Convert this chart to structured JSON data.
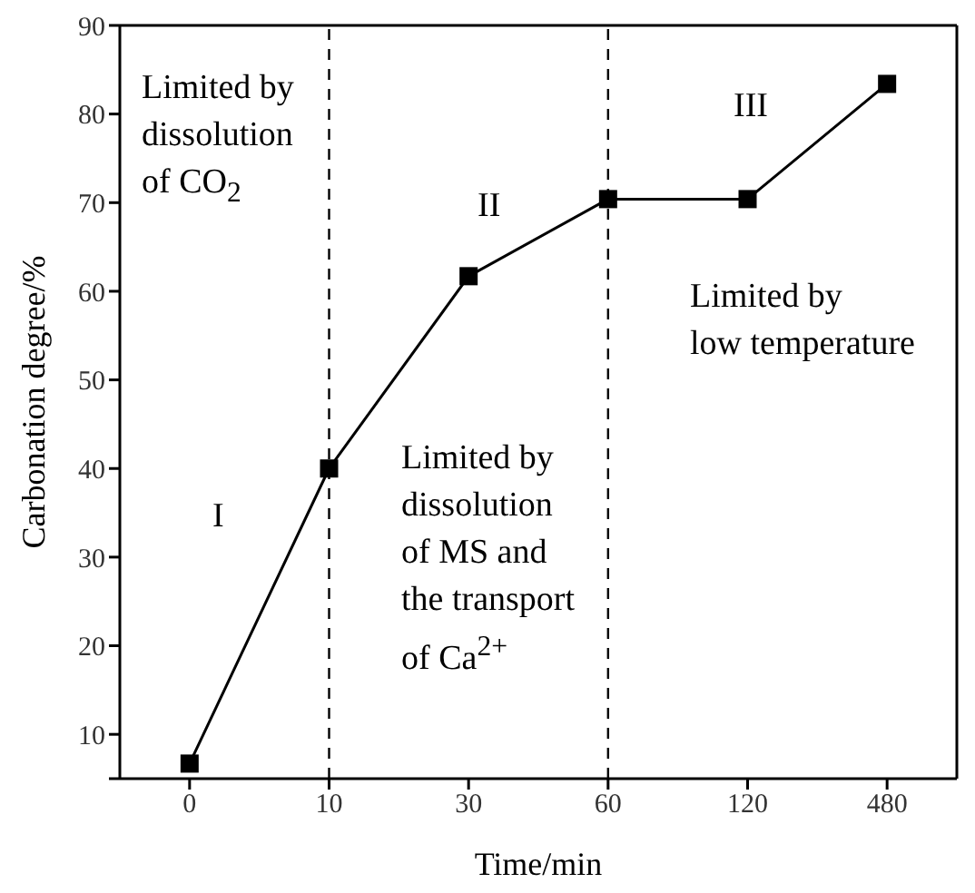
{
  "chart_data": {
    "type": "line",
    "xlabel": "Time/min",
    "ylabel": "Carbonation degree/%",
    "categories": [
      "0",
      "10",
      "30",
      "60",
      "120",
      "480"
    ],
    "series": [
      {
        "color": "#000000",
        "values": [
          6.7,
          40,
          61.7,
          70.4,
          70.4,
          83.4
        ]
      }
    ],
    "ylim": [
      5,
      90
    ],
    "yticks": [
      {
        "value": 5,
        "label": null
      },
      10,
      20,
      30,
      40,
      50,
      60,
      70,
      80,
      90
    ],
    "marker": "square",
    "line_style": "solid",
    "grid": false,
    "legend": false,
    "ref_lines": [
      {
        "axis": "x",
        "value": "10",
        "line_style": "dashed",
        "color": "#000000"
      },
      {
        "axis": "x",
        "value": "60",
        "line_style": "dashed",
        "color": "#000000"
      }
    ],
    "annotations": [
      "Limited by\ndissolution\nof CO$_{2}$",
      "I",
      "II",
      "III",
      "Limited by\ndissolution\nof MS and\nthe transport\nof Ca$^{2+}$",
      "Limited by\nlow temperature"
    ]
  }
}
